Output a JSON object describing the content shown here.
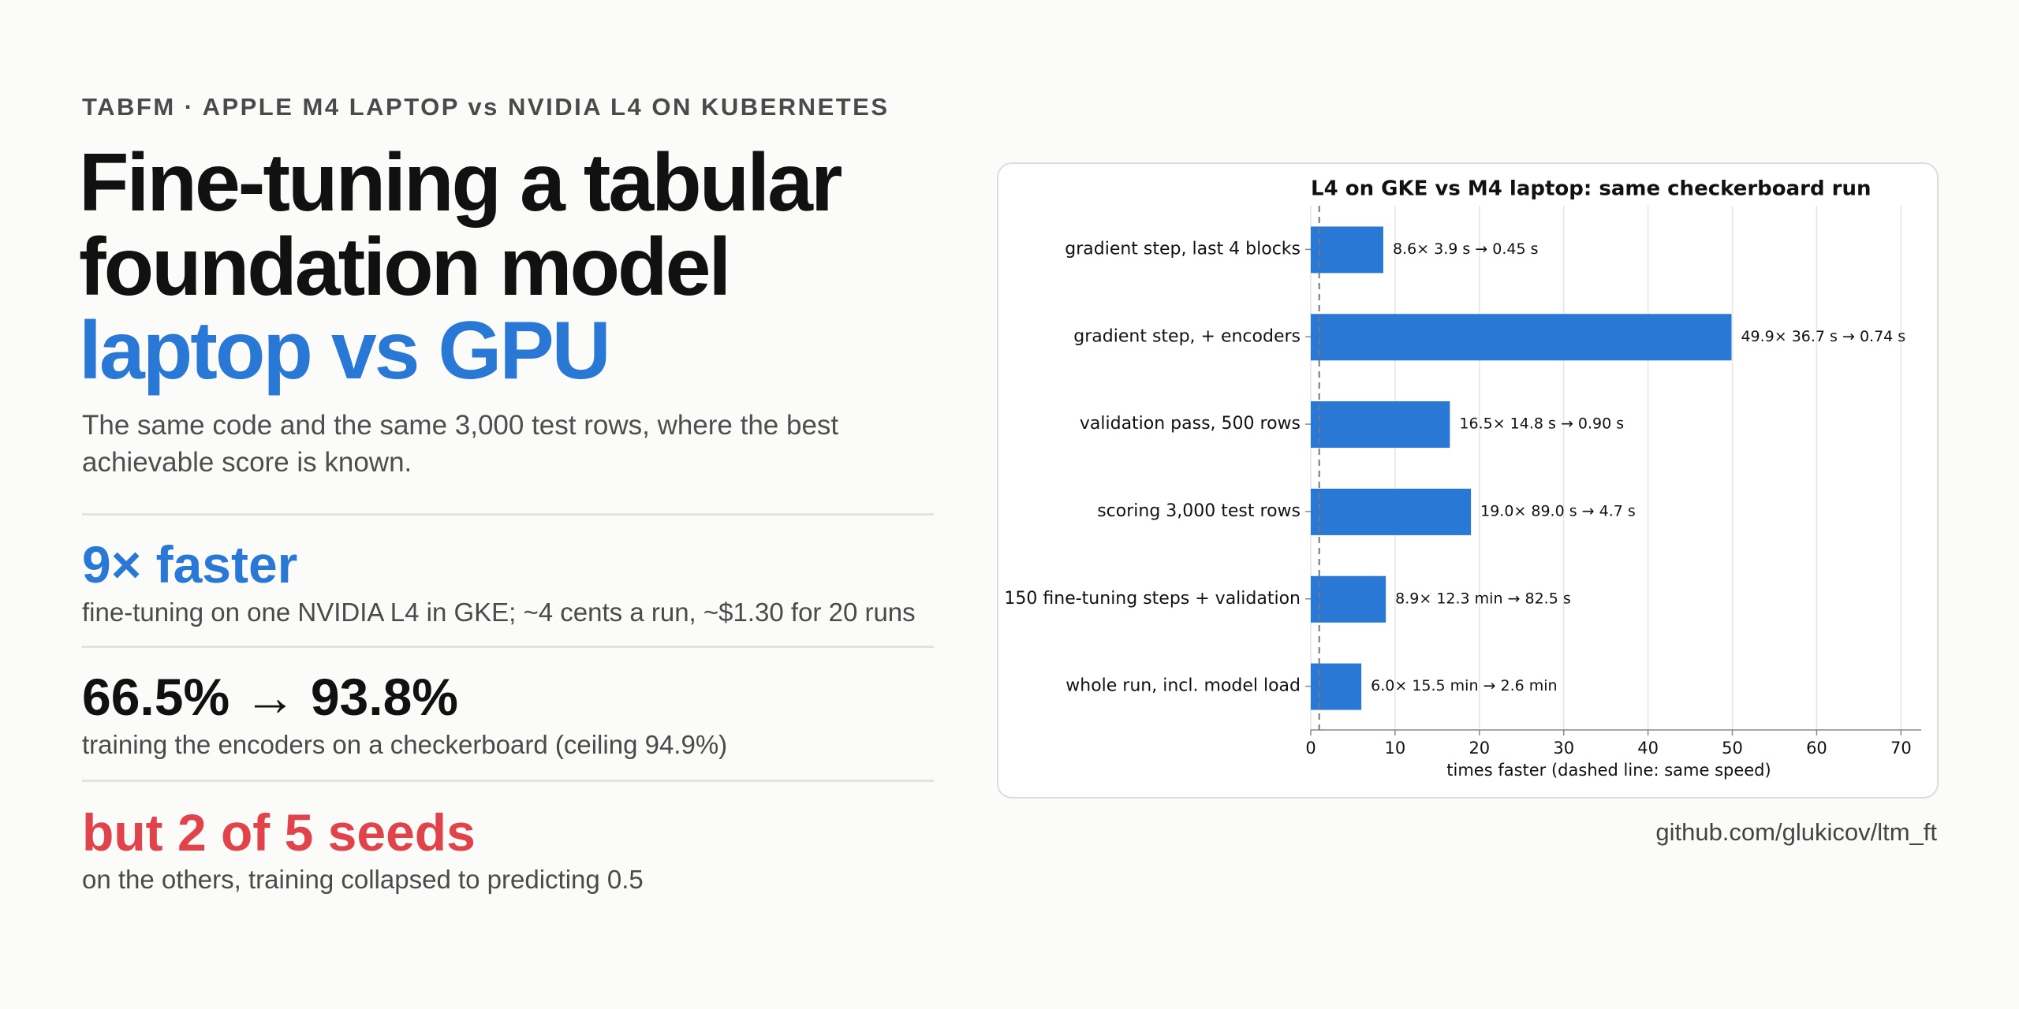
{
  "header": {
    "eyebrow": "TABFM · APPLE M4 LAPTOP vs NVIDIA L4 ON KUBERNETES",
    "title_lines": [
      "Fine-tuning a tabular",
      "foundation model"
    ],
    "title_accent": "laptop vs GPU",
    "subtitle_lines": [
      "The same code and the same 3,000 test rows, where the best",
      "achievable score is known."
    ]
  },
  "stats": [
    {
      "headline": "9× faster",
      "detail": "fine-tuning on one NVIDIA L4 in GKE; ~4 cents a run, ~$1.30 for 20 runs",
      "color": "#2a78d6"
    },
    {
      "headline": "66.5% → 93.8%",
      "detail": "training the encoders on a checkerboard (ceiling 94.9%)",
      "color": "#111111"
    },
    {
      "headline": "but 2 of 5 seeds",
      "detail": "on the others, training collapsed to predicting 0.5",
      "color": "#e0444a"
    }
  ],
  "footer": {
    "link": "github.com/glukicov/ltm_ft"
  },
  "chart_data": {
    "type": "hbar",
    "title": "L4 on GKE vs M4 laptop: same checkerboard run",
    "categories": [
      "gradient step, last 4 blocks",
      "gradient step, + encoders",
      "validation pass, 500 rows",
      "scoring 3,000 test rows",
      "150 fine-tuning steps + validation",
      "whole run, incl. model load"
    ],
    "values": [
      8.6,
      49.9,
      16.5,
      19.0,
      8.9,
      6.0
    ],
    "value_labels": [
      "8.6×   3.9 s → 0.45 s",
      "49.9×   36.7 s → 0.74 s",
      "16.5×   14.8 s → 0.90 s",
      "19.0×   89.0 s → 4.7 s",
      "8.9×   12.3 min → 82.5 s",
      "6.0×   15.5 min → 2.6 min"
    ],
    "color": "#2a78d6",
    "xlabel": "times faster (dashed line: same speed)",
    "xlim": [
      0,
      72.4
    ],
    "xticks": [
      0,
      10,
      20,
      30,
      40,
      50,
      60,
      70
    ],
    "reference_line": 1,
    "grid": true
  }
}
